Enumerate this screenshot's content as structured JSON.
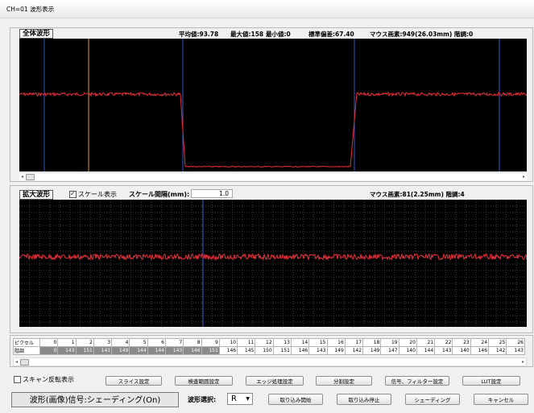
{
  "window": {
    "title": "CH=01 波形表示"
  },
  "overview": {
    "label": "全体波形",
    "stats": {
      "mean": "平均値:93.78",
      "max": "最大値:158",
      "min": "最小値:0",
      "std": "標準偏差:67.40",
      "mouse": "マウス画素:949(26.03mm) 階調:0"
    }
  },
  "zoom": {
    "label": "拡大波形",
    "scale_checkbox": {
      "label": "スケール表示",
      "checked": true
    },
    "scale_interval_label": "スケール間隔(mm):",
    "scale_interval_value": "1.0",
    "mouse": "マウス画素:81(2.25mm) 階調:4"
  },
  "pixel_table": {
    "row1_header": "ピクセル",
    "row2_header": "階調",
    "pixels": [
      "0",
      "1",
      "2",
      "3",
      "4",
      "5",
      "6",
      "7",
      "8",
      "9",
      "10",
      "11",
      "12",
      "13",
      "14",
      "15",
      "16",
      "17",
      "18",
      "19",
      "20",
      "21",
      "22",
      "23",
      "24",
      "25",
      "26"
    ],
    "levels": [
      "0",
      "143",
      "151",
      "141",
      "149",
      "144",
      "144",
      "143",
      "146",
      "151",
      "146",
      "145",
      "150",
      "151",
      "146",
      "143",
      "149",
      "142",
      "149",
      "147",
      "140",
      "144",
      "143",
      "140",
      "146",
      "142",
      "143"
    ],
    "highlighted_count": 10
  },
  "bottom": {
    "scan_reverse": {
      "label": "スキャン反転表示",
      "checked": false
    },
    "buttons_row1": [
      "スライス設定",
      "検査範囲設定",
      "エッジ処理設定",
      "分割設定",
      "信号、フィルター設定",
      "LUT設定"
    ],
    "signal_text": "波形(画像)信号:シェーディング(On)",
    "wave_select_label": "波形選択:",
    "wave_select_value": "R",
    "buttons_row2": [
      "取り込み開始",
      "取り込み停止",
      "シェーディング",
      "キャンセル"
    ]
  },
  "colors": {
    "waveform": "#e8303a",
    "plot_bg": "#000000",
    "marker_blue": "#3a55c8",
    "marker_yellow": "#d7a01c"
  }
}
